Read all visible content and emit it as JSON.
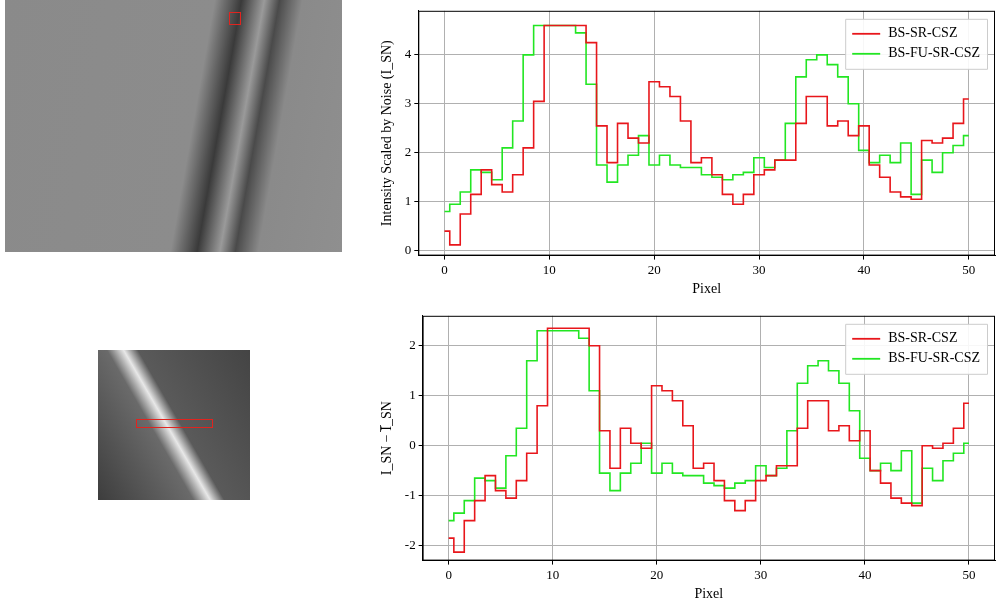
{
  "chart_data": [
    {
      "type": "line",
      "line_style": "steps-mid",
      "grid": true,
      "legend": "upper right",
      "xlabel": "Pixel",
      "ylabel": "Intensity Scaled by Noise (I_SN)",
      "xlim": [
        -2.5,
        52.5
      ],
      "xticks": [
        0,
        10,
        20,
        30,
        40,
        50
      ],
      "ylim": [
        -0.1,
        4.9
      ],
      "yticks": [
        0,
        1,
        2,
        3,
        4
      ],
      "x": [
        0,
        1,
        2,
        3,
        4,
        5,
        6,
        7,
        8,
        9,
        10,
        11,
        12,
        13,
        14,
        15,
        16,
        17,
        18,
        19,
        20,
        21,
        22,
        23,
        24,
        25,
        26,
        27,
        28,
        29,
        30,
        31,
        32,
        33,
        34,
        35,
        36,
        37,
        38,
        39,
        40,
        41,
        42,
        43,
        44,
        45,
        46,
        47,
        48,
        49,
        50
      ],
      "series": [
        {
          "name": "BS-SR-CSZ",
          "color": "#e8161b",
          "values": [
            0.4,
            0.12,
            0.75,
            1.15,
            1.65,
            1.35,
            1.2,
            1.55,
            2.1,
            3.05,
            4.6,
            4.6,
            4.6,
            4.6,
            4.25,
            2.55,
            1.8,
            2.6,
            2.3,
            2.2,
            3.45,
            3.35,
            3.15,
            2.65,
            1.8,
            1.9,
            1.55,
            1.15,
            0.95,
            1.15,
            1.55,
            1.65,
            1.85,
            1.85,
            2.6,
            3.15,
            3.15,
            2.55,
            2.65,
            2.35,
            2.55,
            1.75,
            1.5,
            1.2,
            1.1,
            1.05,
            2.25,
            2.2,
            2.3,
            2.6,
            3.1
          ]
        },
        {
          "name": "BS-FU-SR-CSZ",
          "color": "#22e622",
          "values": [
            0.8,
            0.95,
            1.2,
            1.65,
            1.6,
            1.45,
            2.1,
            2.65,
            4.0,
            4.6,
            4.6,
            4.6,
            4.6,
            4.45,
            3.4,
            1.75,
            1.4,
            1.75,
            1.95,
            2.35,
            1.75,
            1.95,
            1.75,
            1.7,
            1.7,
            1.55,
            1.5,
            1.45,
            1.55,
            1.6,
            1.9,
            1.7,
            1.85,
            2.6,
            3.55,
            3.9,
            4.0,
            3.8,
            3.55,
            3.0,
            2.05,
            1.8,
            1.95,
            1.8,
            2.2,
            1.15,
            1.85,
            1.6,
            2.0,
            2.15,
            2.35
          ]
        }
      ]
    },
    {
      "type": "line",
      "line_style": "steps-mid",
      "grid": true,
      "legend": "upper right",
      "xlabel": "Pixel",
      "ylabel": "I_SN − I̅_SN",
      "xlim": [
        -2.5,
        52.5
      ],
      "xticks": [
        0,
        10,
        20,
        30,
        40,
        50
      ],
      "ylim": [
        -2.3,
        2.6
      ],
      "yticks": [
        -2,
        -1,
        0,
        1,
        2
      ],
      "x": [
        0,
        1,
        2,
        3,
        4,
        5,
        6,
        7,
        8,
        9,
        10,
        11,
        12,
        13,
        14,
        15,
        16,
        17,
        18,
        19,
        20,
        21,
        22,
        23,
        24,
        25,
        26,
        27,
        28,
        29,
        30,
        31,
        32,
        33,
        34,
        35,
        36,
        37,
        38,
        39,
        40,
        41,
        42,
        43,
        44,
        45,
        46,
        47,
        48,
        49,
        50
      ],
      "series": [
        {
          "name": "BS-SR-CSZ",
          "color": "#e8161b",
          "values": [
            -1.85,
            -2.13,
            -1.5,
            -1.1,
            -0.6,
            -0.9,
            -1.05,
            -0.7,
            -0.15,
            0.8,
            2.35,
            2.35,
            2.35,
            2.35,
            2.0,
            0.3,
            -0.45,
            0.35,
            0.05,
            -0.05,
            1.2,
            1.1,
            0.9,
            0.4,
            -0.45,
            -0.35,
            -0.7,
            -1.1,
            -1.3,
            -1.1,
            -0.7,
            -0.6,
            -0.4,
            -0.4,
            0.35,
            0.9,
            0.9,
            0.3,
            0.4,
            0.1,
            0.3,
            -0.5,
            -0.75,
            -1.05,
            -1.15,
            -1.2,
            0.0,
            -0.05,
            0.05,
            0.35,
            0.85
          ]
        },
        {
          "name": "BS-FU-SR-CSZ",
          "color": "#22e622",
          "values": [
            -1.5,
            -1.35,
            -1.1,
            -0.65,
            -0.7,
            -0.85,
            -0.2,
            0.35,
            1.7,
            2.3,
            2.3,
            2.3,
            2.3,
            2.15,
            1.1,
            -0.55,
            -0.9,
            -0.55,
            -0.35,
            0.05,
            -0.55,
            -0.35,
            -0.55,
            -0.6,
            -0.6,
            -0.75,
            -0.8,
            -0.85,
            -0.75,
            -0.7,
            -0.4,
            -0.6,
            -0.45,
            0.3,
            1.25,
            1.6,
            1.7,
            1.5,
            1.25,
            0.7,
            -0.25,
            -0.5,
            -0.35,
            -0.5,
            -0.1,
            -1.15,
            -0.45,
            -0.7,
            -0.3,
            -0.15,
            0.05
          ]
        }
      ]
    }
  ]
}
